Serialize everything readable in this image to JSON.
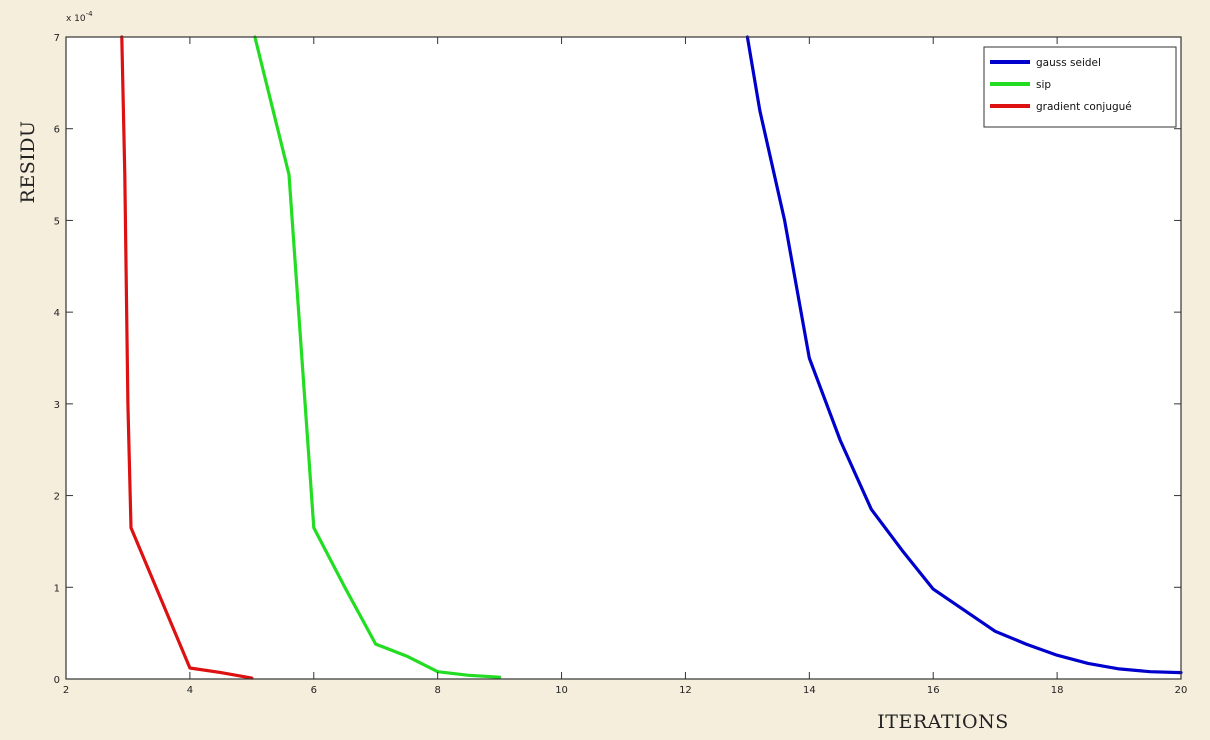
{
  "chart_data": {
    "type": "line",
    "xlabel": "ITERATIONS",
    "ylabel": "RESIDU",
    "y_multiplier": "x 10",
    "y_multiplier_exp": "-4",
    "xlim": [
      2,
      20
    ],
    "ylim": [
      0,
      7
    ],
    "x_ticks": [
      2,
      4,
      6,
      8,
      10,
      12,
      14,
      16,
      18,
      20
    ],
    "y_ticks": [
      0,
      1,
      2,
      3,
      4,
      5,
      6,
      7
    ],
    "grid": false,
    "legend_position": "top-right",
    "series": [
      {
        "name": "gauss seidel",
        "color": "#0000cc",
        "points": [
          [
            13,
            7.0
          ],
          [
            13.2,
            6.2
          ],
          [
            13.6,
            5.0
          ],
          [
            14,
            3.5
          ],
          [
            14.5,
            2.6
          ],
          [
            15,
            1.85
          ],
          [
            15.5,
            1.4
          ],
          [
            16,
            0.98
          ],
          [
            16.5,
            0.75
          ],
          [
            17,
            0.52
          ],
          [
            17.5,
            0.38
          ],
          [
            18,
            0.26
          ],
          [
            18.5,
            0.17
          ],
          [
            19,
            0.11
          ],
          [
            19.5,
            0.08
          ],
          [
            20,
            0.07
          ]
        ]
      },
      {
        "name": "sip",
        "color": "#22dd22",
        "points": [
          [
            5.05,
            7.0
          ],
          [
            5.6,
            5.5
          ],
          [
            6,
            1.65
          ],
          [
            6.5,
            1.0
          ],
          [
            7,
            0.38
          ],
          [
            7.5,
            0.25
          ],
          [
            8,
            0.08
          ],
          [
            8.5,
            0.04
          ],
          [
            9,
            0.02
          ]
        ]
      },
      {
        "name": "gradient conjugué",
        "color": "#dd1111",
        "points": [
          [
            2.9,
            7.0
          ],
          [
            2.95,
            5.5
          ],
          [
            3.0,
            3.0
          ],
          [
            3.05,
            1.65
          ],
          [
            4,
            0.12
          ],
          [
            4.5,
            0.07
          ],
          [
            5,
            0.01
          ]
        ]
      }
    ]
  }
}
